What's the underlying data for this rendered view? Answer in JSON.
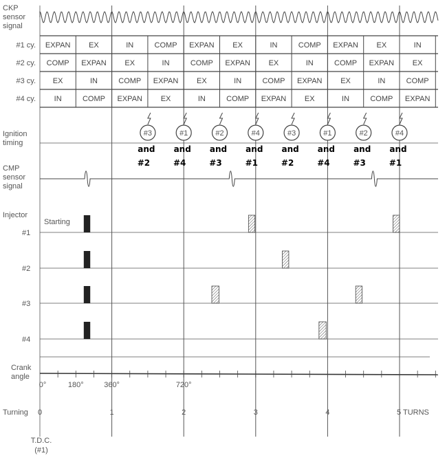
{
  "labels": {
    "ckp": [
      "CKP",
      "sensor",
      "signal"
    ],
    "ignition": [
      "Ignition",
      "timing"
    ],
    "cmp": [
      "CMP",
      "sensor",
      "signal"
    ],
    "injector": "Injector",
    "starting": "Starting",
    "crank": [
      "Crank",
      "angle"
    ],
    "turning": "Turning",
    "tdc": [
      "T.D.C.",
      "(#1)"
    ]
  },
  "cylinder_table": {
    "rows": [
      {
        "label": "#1 cy.",
        "cells": [
          "EXPAN",
          "EX",
          "IN",
          "COMP",
          "EXPAN",
          "EX",
          "IN",
          "COMP",
          "EXPAN",
          "EX",
          "IN"
        ]
      },
      {
        "label": "#2 cy.",
        "cells": [
          "COMP",
          "EXPAN",
          "EX",
          "IN",
          "COMP",
          "EXPAN",
          "EX",
          "IN",
          "COMP",
          "EXPAN",
          "EX"
        ]
      },
      {
        "label": "#3 cy.",
        "cells": [
          "EX",
          "IN",
          "COMP",
          "EXPAN",
          "EX",
          "IN",
          "COMP",
          "EXPAN",
          "EX",
          "IN",
          "COMP"
        ]
      },
      {
        "label": "#4 cy.",
        "cells": [
          "IN",
          "COMP",
          "EXPAN",
          "EX",
          "IN",
          "COMP",
          "EXPAN",
          "EX",
          "IN",
          "COMP",
          "EXPAN"
        ]
      }
    ]
  },
  "ignition_events": [
    {
      "turn": 1.5,
      "cyl": "#3",
      "pair": [
        "and",
        "#2"
      ]
    },
    {
      "turn": 2.0,
      "cyl": "#1",
      "pair": [
        "and",
        "#4"
      ]
    },
    {
      "turn": 2.5,
      "cyl": "#2",
      "pair": [
        "and",
        "#3"
      ]
    },
    {
      "turn": 3.0,
      "cyl": "#4",
      "pair": [
        "and",
        "#1"
      ]
    },
    {
      "turn": 3.5,
      "cyl": "#3",
      "pair": [
        "and",
        "#2"
      ]
    },
    {
      "turn": 4.0,
      "cyl": "#1",
      "pair": [
        "and",
        "#4"
      ]
    },
    {
      "turn": 4.5,
      "cyl": "#2",
      "pair": [
        "and",
        "#3"
      ]
    },
    {
      "turn": 5.0,
      "cyl": "#4",
      "pair": [
        "and",
        "#1"
      ]
    }
  ],
  "cmp_pulses_turns": [
    0.66,
    2.67,
    4.65
  ],
  "injectors": [
    {
      "label": "#1",
      "starting": [
        0.61,
        0.7
      ],
      "pulses": [
        [
          2.9,
          2.99
        ],
        [
          4.91,
          5.0
        ]
      ]
    },
    {
      "label": "#2",
      "starting": [
        0.61,
        0.7
      ],
      "pulses": [
        [
          3.37,
          3.46
        ]
      ]
    },
    {
      "label": "#3",
      "starting": [
        0.61,
        0.7
      ],
      "pulses": [
        [
          2.39,
          2.49
        ],
        [
          4.39,
          4.48
        ]
      ]
    },
    {
      "label": "#4",
      "starting": [
        0.61,
        0.7
      ],
      "pulses": [
        [
          3.88,
          3.98
        ]
      ]
    }
  ],
  "crank_angle_ticks": [
    "0°",
    "180°",
    "360°",
    "720°"
  ],
  "turn_ticks": [
    "0",
    "1",
    "2",
    "3",
    "4",
    "5 TURNS"
  ],
  "colors": {
    "line": "#555555",
    "text": "#555555",
    "bold_text": "#000000"
  }
}
